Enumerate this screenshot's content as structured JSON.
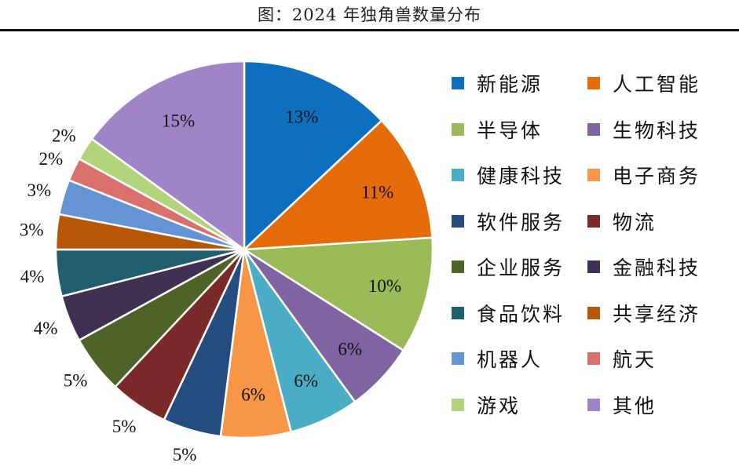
{
  "chart_data": {
    "type": "pie",
    "title": "图：2024 年独角兽数量分布",
    "legend_position": "right",
    "start_angle": "12 o'clock, clockwise",
    "slices": [
      {
        "label": "新能源",
        "value": 13,
        "display": "13%",
        "color": "#0f6fbf"
      },
      {
        "label": "人工智能",
        "value": 11,
        "display": "11%",
        "color": "#e46c0a"
      },
      {
        "label": "半导体",
        "value": 10,
        "display": "10%",
        "color": "#9bbb59"
      },
      {
        "label": "生物科技",
        "value": 6,
        "display": "6%",
        "color": "#8064a2"
      },
      {
        "label": "健康科技",
        "value": 6,
        "display": "6%",
        "color": "#4bacc6"
      },
      {
        "label": "电子商务",
        "value": 6,
        "display": "6%",
        "color": "#f79646"
      },
      {
        "label": "软件服务",
        "value": 5,
        "display": "5%",
        "color": "#254c7e"
      },
      {
        "label": "物流",
        "value": 5,
        "display": "5%",
        "color": "#7b2a2a"
      },
      {
        "label": "企业服务",
        "value": 5,
        "display": "5%",
        "color": "#4f6228"
      },
      {
        "label": "金融科技",
        "value": 4,
        "display": "4%",
        "color": "#403152"
      },
      {
        "label": "食品饮料",
        "value": 4,
        "display": "4%",
        "color": "#215f6e"
      },
      {
        "label": "共享经济",
        "value": 3,
        "display": "3%",
        "color": "#b65708"
      },
      {
        "label": "机器人",
        "value": 3,
        "display": "3%",
        "color": "#6594d4"
      },
      {
        "label": "航天",
        "value": 2,
        "display": "2%",
        "color": "#d9706c"
      },
      {
        "label": "游戏",
        "value": 2,
        "display": "2%",
        "color": "#b3d37b"
      },
      {
        "label": "其他",
        "value": 15,
        "display": "15%",
        "color": "#9f85c7"
      }
    ]
  }
}
